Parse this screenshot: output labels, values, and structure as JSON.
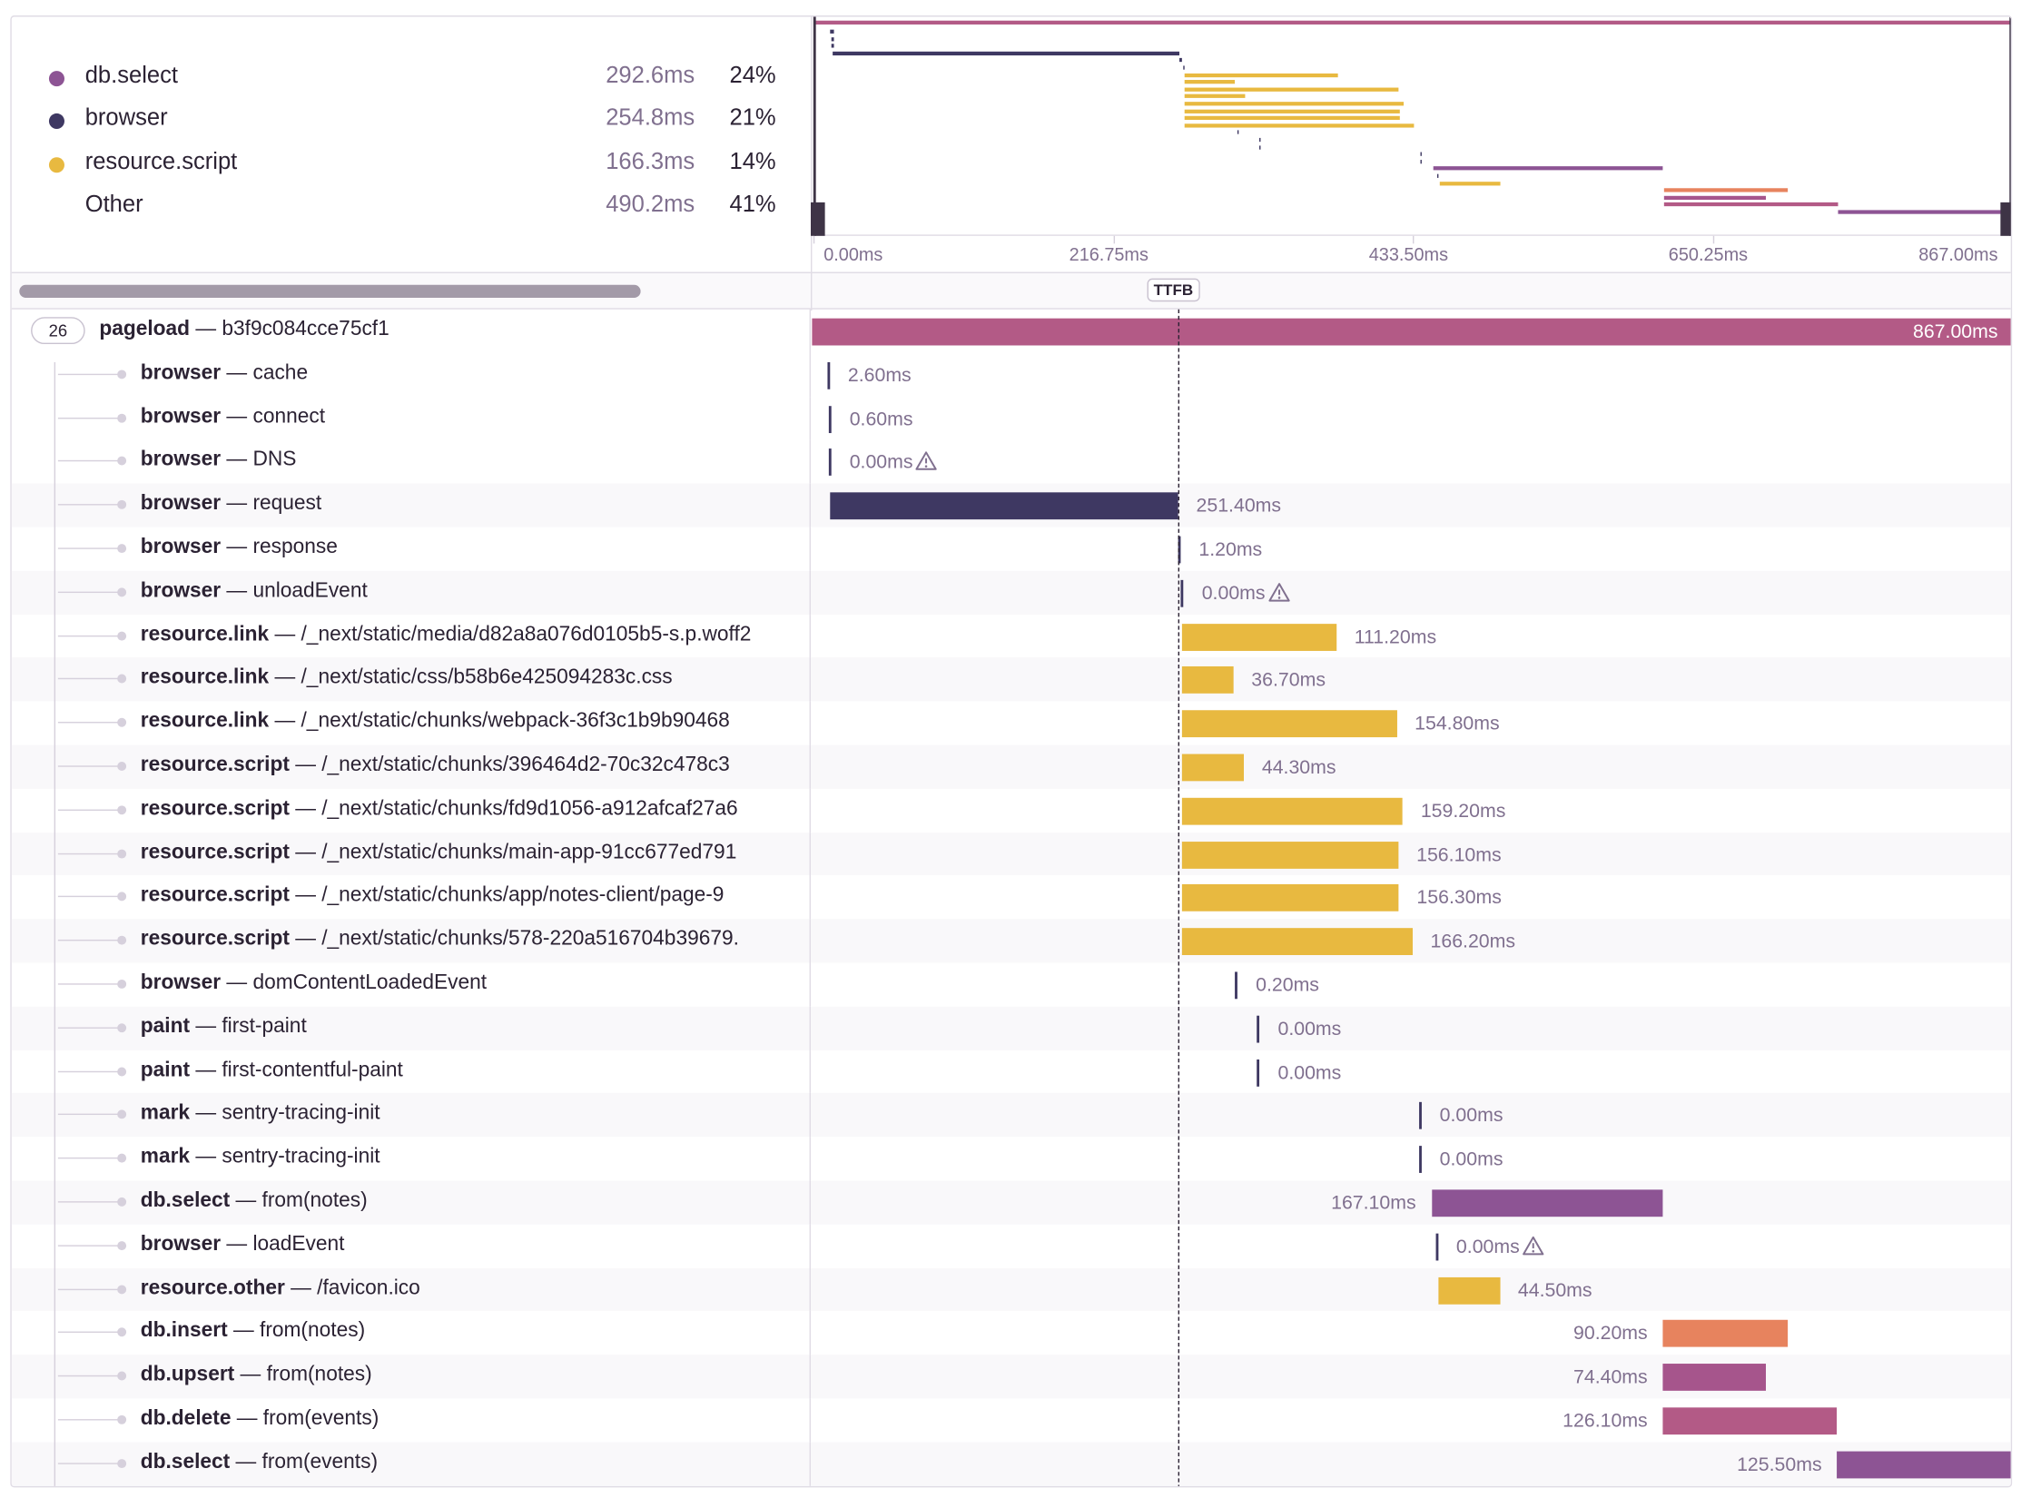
{
  "legend": [
    {
      "name": "db.select",
      "time": "292.6ms",
      "pct": "24%",
      "color": "#8d5494"
    },
    {
      "name": "browser",
      "time": "254.8ms",
      "pct": "21%",
      "color": "#3e3862"
    },
    {
      "name": "resource.script",
      "time": "166.3ms",
      "pct": "14%",
      "color": "#e8b940"
    },
    {
      "name": "Other",
      "time": "490.2ms",
      "pct": "41%",
      "color": ""
    }
  ],
  "axis_ticks": [
    "0.00ms",
    "216.75ms",
    "433.50ms",
    "650.25ms",
    "867.00ms"
  ],
  "ttfb_label": "TTFB",
  "root": {
    "count": "26",
    "op": "pageload",
    "desc": "b3f9c084cce75cf1",
    "duration": "867.00ms",
    "color": "#b35a86"
  },
  "spans": [
    {
      "op": "browser",
      "desc": "cache",
      "duration": "2.60ms",
      "start_ms": 11.0,
      "dur_ms": 2.6,
      "kind": "tick",
      "warn": false,
      "color": "#3e3862"
    },
    {
      "op": "browser",
      "desc": "connect",
      "duration": "0.60ms",
      "start_ms": 12.2,
      "dur_ms": 0.6,
      "kind": "tick",
      "warn": false,
      "color": "#3e3862"
    },
    {
      "op": "browser",
      "desc": "DNS",
      "duration": "0.00ms",
      "start_ms": 12.2,
      "dur_ms": 0.0,
      "kind": "tick",
      "warn": true,
      "color": "#3e3862"
    },
    {
      "op": "browser",
      "desc": "request",
      "duration": "251.40ms",
      "start_ms": 13.4,
      "dur_ms": 251.4,
      "kind": "bar",
      "warn": false,
      "color": "#3e3862"
    },
    {
      "op": "browser",
      "desc": "response",
      "duration": "1.20ms",
      "start_ms": 264.8,
      "dur_ms": 1.2,
      "kind": "tick",
      "warn": false,
      "color": "#3e3862"
    },
    {
      "op": "browser",
      "desc": "unloadEvent",
      "duration": "0.00ms",
      "start_ms": 267.0,
      "dur_ms": 0.0,
      "kind": "tick",
      "warn": true,
      "color": "#3e3862"
    },
    {
      "op": "resource.link",
      "desc": "/_next/static/media/d82a8a076d0105b5-s.p.woff2",
      "duration": "111.20ms",
      "start_ms": 268.0,
      "dur_ms": 111.2,
      "kind": "bar",
      "warn": false,
      "color": "#e8b940"
    },
    {
      "op": "resource.link",
      "desc": "/_next/static/css/b58b6e425094283c.css",
      "duration": "36.70ms",
      "start_ms": 268.0,
      "dur_ms": 36.7,
      "kind": "bar",
      "warn": false,
      "color": "#e8b940"
    },
    {
      "op": "resource.link",
      "desc": "/_next/static/chunks/webpack-36f3c1b9b90468",
      "duration": "154.80ms",
      "start_ms": 268.0,
      "dur_ms": 154.8,
      "kind": "bar",
      "warn": false,
      "color": "#e8b940"
    },
    {
      "op": "resource.script",
      "desc": "/_next/static/chunks/396464d2-70c32c478c3",
      "duration": "44.30ms",
      "start_ms": 268.0,
      "dur_ms": 44.3,
      "kind": "bar",
      "warn": false,
      "color": "#e8b940"
    },
    {
      "op": "resource.script",
      "desc": "/_next/static/chunks/fd9d1056-a912afcaf27a6",
      "duration": "159.20ms",
      "start_ms": 268.0,
      "dur_ms": 159.2,
      "kind": "bar",
      "warn": false,
      "color": "#e8b940"
    },
    {
      "op": "resource.script",
      "desc": "/_next/static/chunks/main-app-91cc677ed791",
      "duration": "156.10ms",
      "start_ms": 268.0,
      "dur_ms": 156.1,
      "kind": "bar",
      "warn": false,
      "color": "#e8b940"
    },
    {
      "op": "resource.script",
      "desc": "/_next/static/chunks/app/notes-client/page-9",
      "duration": "156.30ms",
      "start_ms": 268.0,
      "dur_ms": 156.3,
      "kind": "bar",
      "warn": false,
      "color": "#e8b940"
    },
    {
      "op": "resource.script",
      "desc": "/_next/static/chunks/578-220a516704b39679.",
      "duration": "166.20ms",
      "start_ms": 268.0,
      "dur_ms": 166.2,
      "kind": "bar",
      "warn": false,
      "color": "#e8b940"
    },
    {
      "op": "browser",
      "desc": "domContentLoadedEvent",
      "duration": "0.20ms",
      "start_ms": 306.0,
      "dur_ms": 0.2,
      "kind": "tick",
      "warn": false,
      "color": "#3e3862"
    },
    {
      "op": "paint",
      "desc": "first-paint",
      "duration": "0.00ms",
      "start_ms": 322.0,
      "dur_ms": 0.0,
      "kind": "tick",
      "warn": false,
      "color": "#3e3862"
    },
    {
      "op": "paint",
      "desc": "first-contentful-paint",
      "duration": "0.00ms",
      "start_ms": 322.0,
      "dur_ms": 0.0,
      "kind": "tick",
      "warn": false,
      "color": "#3e3862"
    },
    {
      "op": "mark",
      "desc": "sentry-tracing-init",
      "duration": "0.00ms",
      "start_ms": 439.0,
      "dur_ms": 0.0,
      "kind": "tick",
      "warn": false,
      "color": "#3e3862"
    },
    {
      "op": "mark",
      "desc": "sentry-tracing-init",
      "duration": "0.00ms",
      "start_ms": 439.0,
      "dur_ms": 0.0,
      "kind": "tick",
      "warn": false,
      "color": "#3e3862"
    },
    {
      "op": "db.select",
      "desc": "from(notes)",
      "duration": "167.10ms",
      "start_ms": 448.0,
      "dur_ms": 167.1,
      "kind": "bar",
      "warn": false,
      "label_left": true,
      "color": "#8d5494"
    },
    {
      "op": "browser",
      "desc": "loadEvent",
      "duration": "0.00ms",
      "start_ms": 451.0,
      "dur_ms": 0.0,
      "kind": "tick",
      "warn": true,
      "color": "#3e3862"
    },
    {
      "op": "resource.other",
      "desc": "/favicon.ico",
      "duration": "44.50ms",
      "start_ms": 453.0,
      "dur_ms": 44.5,
      "kind": "bar",
      "warn": false,
      "color": "#e8b940"
    },
    {
      "op": "db.insert",
      "desc": "from(notes)",
      "duration": "90.20ms",
      "start_ms": 615.5,
      "dur_ms": 90.2,
      "kind": "bar",
      "warn": false,
      "label_left": true,
      "color": "#e7835e"
    },
    {
      "op": "db.upsert",
      "desc": "from(notes)",
      "duration": "74.40ms",
      "start_ms": 615.5,
      "dur_ms": 74.4,
      "kind": "bar",
      "warn": false,
      "label_left": true,
      "color": "#a6558c"
    },
    {
      "op": "db.delete",
      "desc": "from(events)",
      "duration": "126.10ms",
      "start_ms": 615.5,
      "dur_ms": 126.1,
      "kind": "bar",
      "warn": false,
      "label_left": true,
      "color": "#b35a86"
    },
    {
      "op": "db.select",
      "desc": "from(events)",
      "duration": "125.50ms",
      "start_ms": 741.5,
      "dur_ms": 125.5,
      "kind": "bar",
      "warn": false,
      "label_left": true,
      "color": "#8d5494"
    }
  ],
  "ttfb_ms": 265.0,
  "total_ms": 867.0
}
